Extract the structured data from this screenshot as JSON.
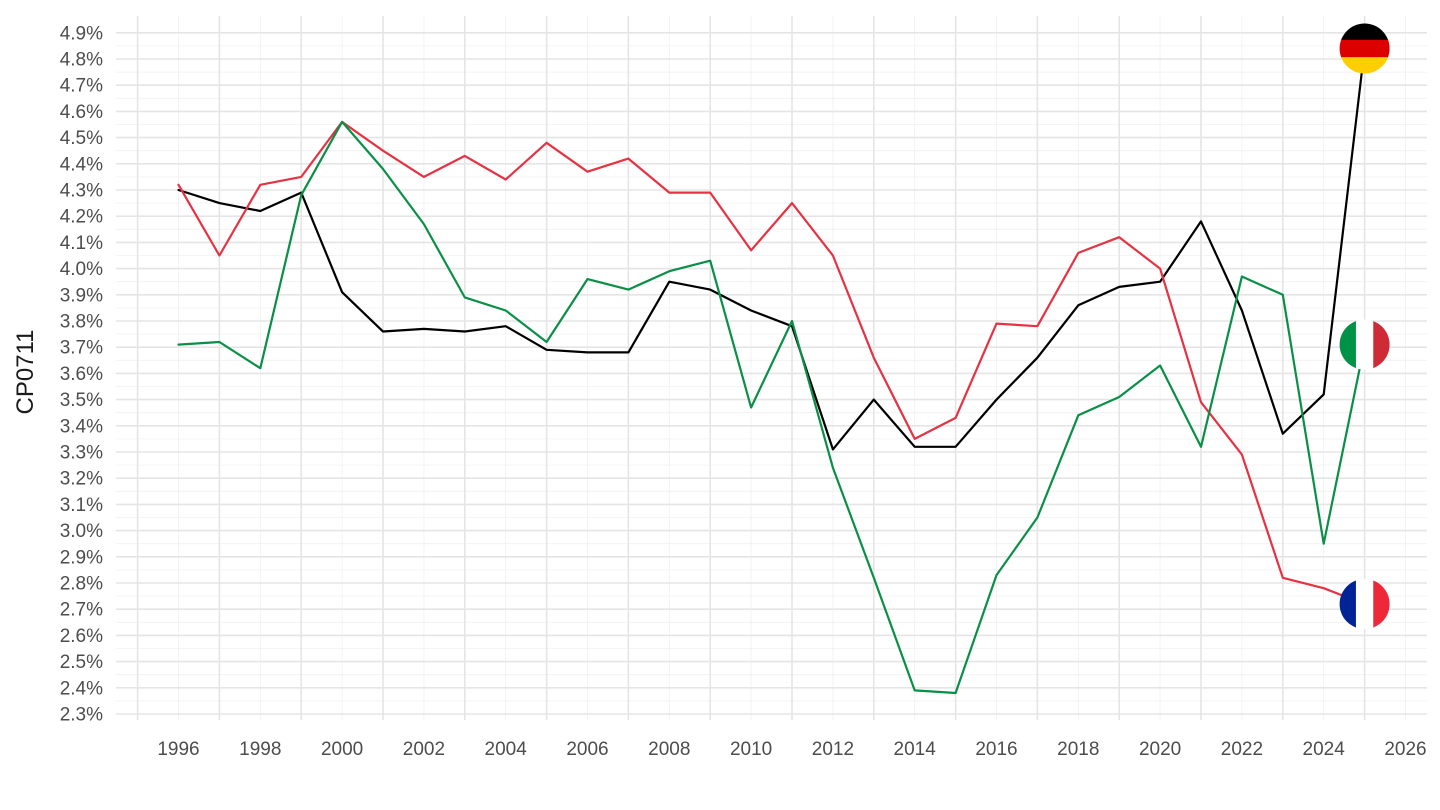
{
  "chart_data": {
    "type": "line",
    "xlabel": "",
    "ylabel": "CP0711",
    "xlim": [
      1995,
      2026
    ],
    "ylim": [
      2.26,
      4.94
    ],
    "y_ticks": [
      "2.3%",
      "2.4%",
      "2.5%",
      "2.6%",
      "2.7%",
      "2.8%",
      "2.9%",
      "3.0%",
      "3.1%",
      "3.2%",
      "3.3%",
      "3.4%",
      "3.5%",
      "3.6%",
      "3.7%",
      "3.8%",
      "3.9%",
      "4.0%",
      "4.1%",
      "4.2%",
      "4.3%",
      "4.4%",
      "4.5%",
      "4.6%",
      "4.7%",
      "4.8%",
      "4.9%"
    ],
    "x_ticks": [
      "1996",
      "1998",
      "2000",
      "2002",
      "2004",
      "2006",
      "2008",
      "2010",
      "2012",
      "2014",
      "2016",
      "2018",
      "2020",
      "2022",
      "2024",
      "2026"
    ],
    "grid": true,
    "legend": "none",
    "series": [
      {
        "flag": "germany",
        "color": "#000000",
        "x": [
          1996,
          1997,
          1998,
          1999,
          2000,
          2001,
          2002,
          2003,
          2004,
          2005,
          2006,
          2007,
          2008,
          2009,
          2010,
          2011,
          2012,
          2013,
          2014,
          2015,
          2016,
          2017,
          2018,
          2019,
          2020,
          2021,
          2022,
          2023,
          2024,
          2025
        ],
        "values": [
          4.3,
          4.25,
          4.22,
          4.29,
          3.91,
          3.76,
          3.77,
          3.76,
          3.78,
          3.69,
          3.68,
          3.68,
          3.95,
          3.92,
          3.84,
          3.78,
          3.31,
          3.5,
          3.32,
          3.32,
          3.5,
          3.66,
          3.86,
          3.93,
          3.95,
          4.18,
          3.84,
          3.37,
          3.52,
          4.84
        ]
      },
      {
        "flag": "france",
        "color": "#E63242",
        "x": [
          1996,
          1997,
          1998,
          1999,
          2000,
          2001,
          2002,
          2003,
          2004,
          2005,
          2006,
          2007,
          2008,
          2009,
          2010,
          2011,
          2012,
          2013,
          2014,
          2015,
          2016,
          2017,
          2018,
          2019,
          2020,
          2021,
          2022,
          2023,
          2024,
          2025
        ],
        "values": [
          4.32,
          4.05,
          4.32,
          4.35,
          4.56,
          4.45,
          4.35,
          4.43,
          4.34,
          4.48,
          4.37,
          4.42,
          4.29,
          4.29,
          4.07,
          4.25,
          4.05,
          3.66,
          3.35,
          3.43,
          3.79,
          3.78,
          4.06,
          4.12,
          4.0,
          3.49,
          3.29,
          2.82,
          2.78,
          2.72
        ]
      },
      {
        "flag": "italy",
        "color": "#0A8F47",
        "x": [
          1996,
          1997,
          1998,
          1999,
          2000,
          2001,
          2002,
          2003,
          2004,
          2005,
          2006,
          2007,
          2008,
          2009,
          2010,
          2011,
          2012,
          2013,
          2014,
          2015,
          2016,
          2017,
          2018,
          2019,
          2020,
          2021,
          2022,
          2023,
          2024,
          2025
        ],
        "values": [
          3.71,
          3.72,
          3.62,
          4.28,
          4.56,
          4.38,
          4.17,
          3.89,
          3.84,
          3.72,
          3.96,
          3.92,
          3.99,
          4.03,
          3.47,
          3.8,
          3.24,
          2.82,
          2.39,
          2.38,
          2.83,
          3.05,
          3.44,
          3.51,
          3.63,
          3.32,
          3.97,
          3.9,
          2.95,
          3.71
        ]
      }
    ]
  }
}
